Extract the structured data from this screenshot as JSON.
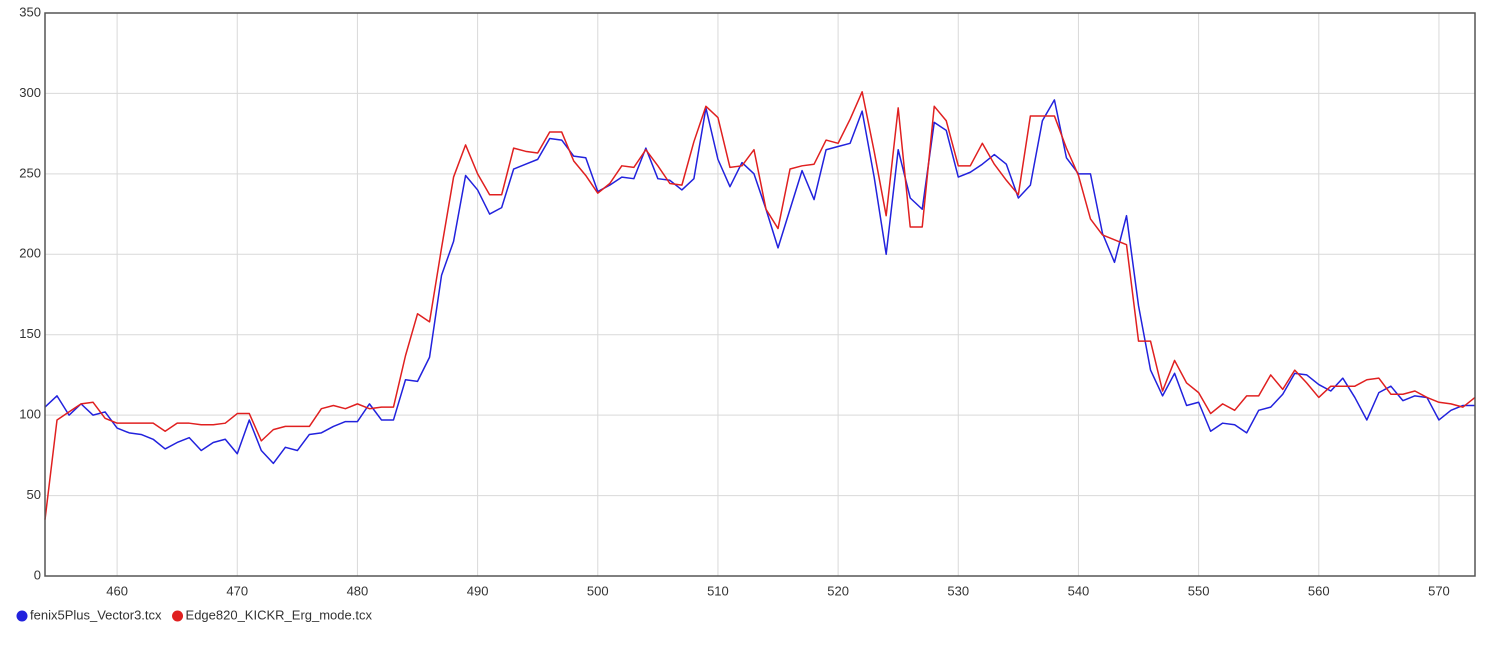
{
  "chart_data": {
    "type": "line",
    "x": [
      454,
      455,
      456,
      457,
      458,
      459,
      460,
      461,
      462,
      463,
      464,
      465,
      466,
      467,
      468,
      469,
      470,
      471,
      472,
      473,
      474,
      475,
      476,
      477,
      478,
      479,
      480,
      481,
      482,
      483,
      484,
      485,
      486,
      487,
      488,
      489,
      490,
      491,
      492,
      493,
      494,
      495,
      496,
      497,
      498,
      499,
      500,
      501,
      502,
      503,
      504,
      505,
      506,
      507,
      508,
      509,
      510,
      511,
      512,
      513,
      514,
      515,
      516,
      517,
      518,
      519,
      520,
      521,
      522,
      523,
      524,
      525,
      526,
      527,
      528,
      529,
      530,
      531,
      532,
      533,
      534,
      535,
      536,
      537,
      538,
      539,
      540,
      541,
      542,
      543,
      544,
      545,
      546,
      547,
      548,
      549,
      550,
      551,
      552,
      553,
      554,
      555,
      556,
      557,
      558,
      559,
      560,
      561,
      562,
      563,
      564,
      565,
      566,
      567,
      568,
      569,
      570,
      571,
      572,
      573
    ],
    "series": [
      {
        "name": "fenix5Plus_Vector3.tcx",
        "color": "#2222dd",
        "values": [
          105,
          112,
          100,
          107,
          100,
          102,
          92,
          89,
          88,
          85,
          79,
          83,
          86,
          78,
          83,
          85,
          76,
          97,
          78,
          70,
          80,
          78,
          88,
          89,
          93,
          96,
          96,
          107,
          97,
          97,
          122,
          121,
          136,
          187,
          208,
          249,
          240,
          225,
          229,
          253,
          256,
          259,
          272,
          271,
          261,
          260,
          239,
          243,
          248,
          247,
          266,
          247,
          246,
          240,
          247,
          291,
          259,
          242,
          257,
          250,
          228,
          204,
          228,
          252,
          234,
          265,
          267,
          269,
          289,
          248,
          200,
          265,
          235,
          228,
          282,
          277,
          248,
          251,
          256,
          262,
          256,
          235,
          243,
          283,
          296,
          260,
          250,
          250,
          213,
          195,
          224,
          168,
          128,
          112,
          126,
          106,
          108,
          90,
          95,
          94,
          89,
          103,
          105,
          113,
          126,
          125,
          119,
          115,
          123,
          111,
          97,
          114,
          118,
          109,
          112,
          111,
          97,
          103,
          106,
          106
        ]
      },
      {
        "name": "Edge820_KICKR_Erg_mode.tcx",
        "color": "#e02020",
        "values": [
          35,
          97,
          102,
          107,
          108,
          98,
          95,
          95,
          95,
          95,
          90,
          95,
          95,
          94,
          94,
          95,
          101,
          101,
          84,
          91,
          93,
          93,
          93,
          104,
          106,
          104,
          107,
          104,
          105,
          105,
          137,
          163,
          158,
          204,
          248,
          268,
          250,
          237,
          237,
          266,
          264,
          263,
          276,
          276,
          258,
          249,
          238,
          244,
          255,
          254,
          265,
          255,
          244,
          243,
          270,
          292,
          285,
          254,
          255,
          265,
          228,
          216,
          253,
          255,
          256,
          271,
          269,
          284,
          301,
          264,
          224,
          291,
          217,
          217,
          292,
          283,
          255,
          255,
          269,
          256,
          246,
          237,
          286,
          286,
          286,
          266,
          249,
          222,
          212,
          209,
          206,
          146,
          146,
          115,
          134,
          120,
          114,
          101,
          107,
          103,
          112,
          112,
          125,
          116,
          128,
          120,
          111,
          118,
          118,
          118,
          122,
          123,
          113,
          113,
          115,
          111,
          108,
          107,
          105,
          111
        ]
      }
    ],
    "xlim": [
      454,
      573
    ],
    "xticks": [
      460,
      470,
      480,
      490,
      500,
      510,
      520,
      530,
      540,
      550,
      560,
      570
    ],
    "ylim": [
      0,
      350
    ],
    "yticks": [
      0,
      50,
      100,
      150,
      200,
      250,
      300,
      350
    ],
    "grid": true,
    "legend": "bottom-left"
  }
}
